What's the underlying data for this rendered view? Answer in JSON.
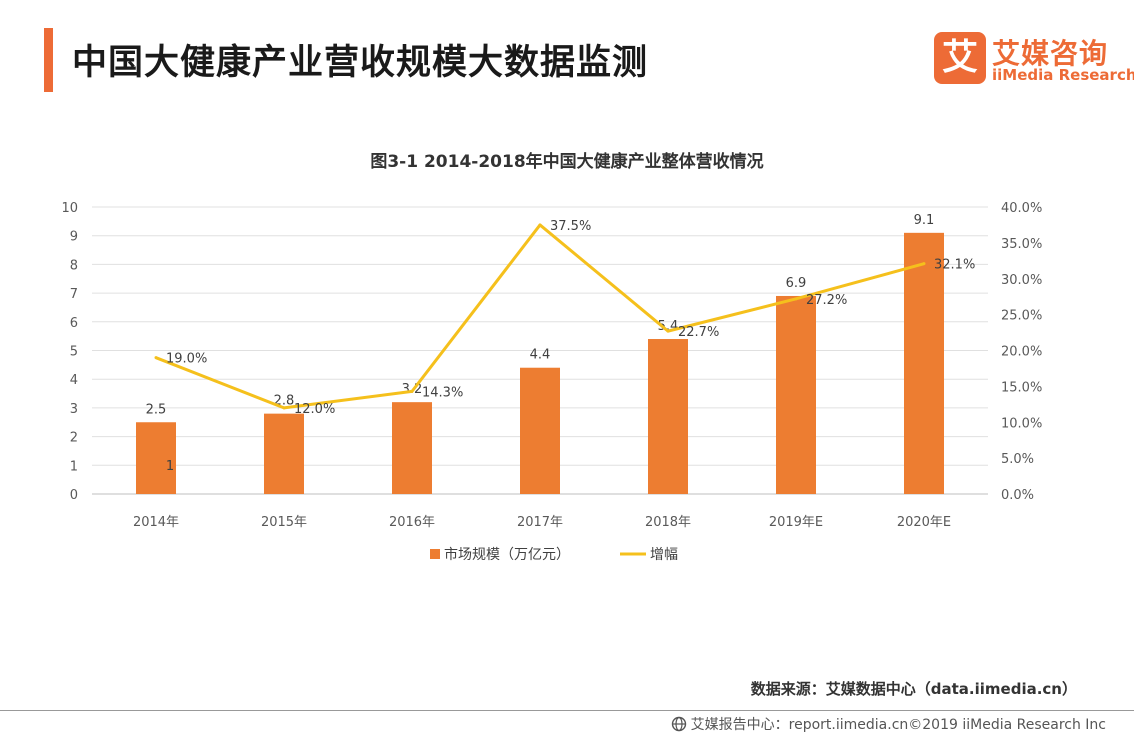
{
  "header": {
    "title": "中国大健康产业营收规模大数据监测",
    "logo_mark": "艾",
    "logo_cn": "艾媒咨询",
    "logo_en": "iiMedia Research"
  },
  "chart_data": {
    "type": "bar+line",
    "title": "图3-1 2014-2018年中国大健康产业整体营收情况",
    "categories": [
      "2014年",
      "2015年",
      "2016年",
      "2017年",
      "2018年",
      "2019年E",
      "2020年E"
    ],
    "series": [
      {
        "name": "市场规模（万亿元）",
        "type": "bar",
        "axis": "left",
        "values": [
          2.5,
          2.8,
          3.2,
          4.4,
          5.4,
          6.9,
          9.1
        ],
        "labels": [
          "2.5",
          "2.8",
          "3.2",
          "4.4",
          "5.4",
          "6.9",
          "9.1"
        ]
      },
      {
        "name": "增幅",
        "type": "line",
        "axis": "right",
        "values": [
          19.0,
          12.0,
          14.3,
          37.5,
          22.7,
          27.2,
          32.1
        ],
        "labels": [
          "19.0%",
          "12.0%",
          "14.3%",
          "37.5%",
          "22.7%",
          "27.2%",
          "32.1%"
        ]
      }
    ],
    "stray_label": "1",
    "y_left": {
      "min": 0,
      "max": 10,
      "ticks": [
        "0",
        "1",
        "2",
        "3",
        "4",
        "5",
        "6",
        "7",
        "8",
        "9",
        "10"
      ]
    },
    "y_right": {
      "min": 0,
      "max": 40,
      "ticks": [
        "0.0%",
        "5.0%",
        "10.0%",
        "15.0%",
        "20.0%",
        "25.0%",
        "30.0%",
        "35.0%",
        "40.0%"
      ]
    },
    "grid": true,
    "legend_position": "bottom",
    "colors": {
      "bar": "#ed7d31",
      "line": "#f5c01c"
    }
  },
  "footer": {
    "source": "数据来源：艾媒数据中心（data.iimedia.cn）",
    "copyright": "艾媒报告中心：report.iimedia.cn©2019 iiMedia Research Inc"
  }
}
